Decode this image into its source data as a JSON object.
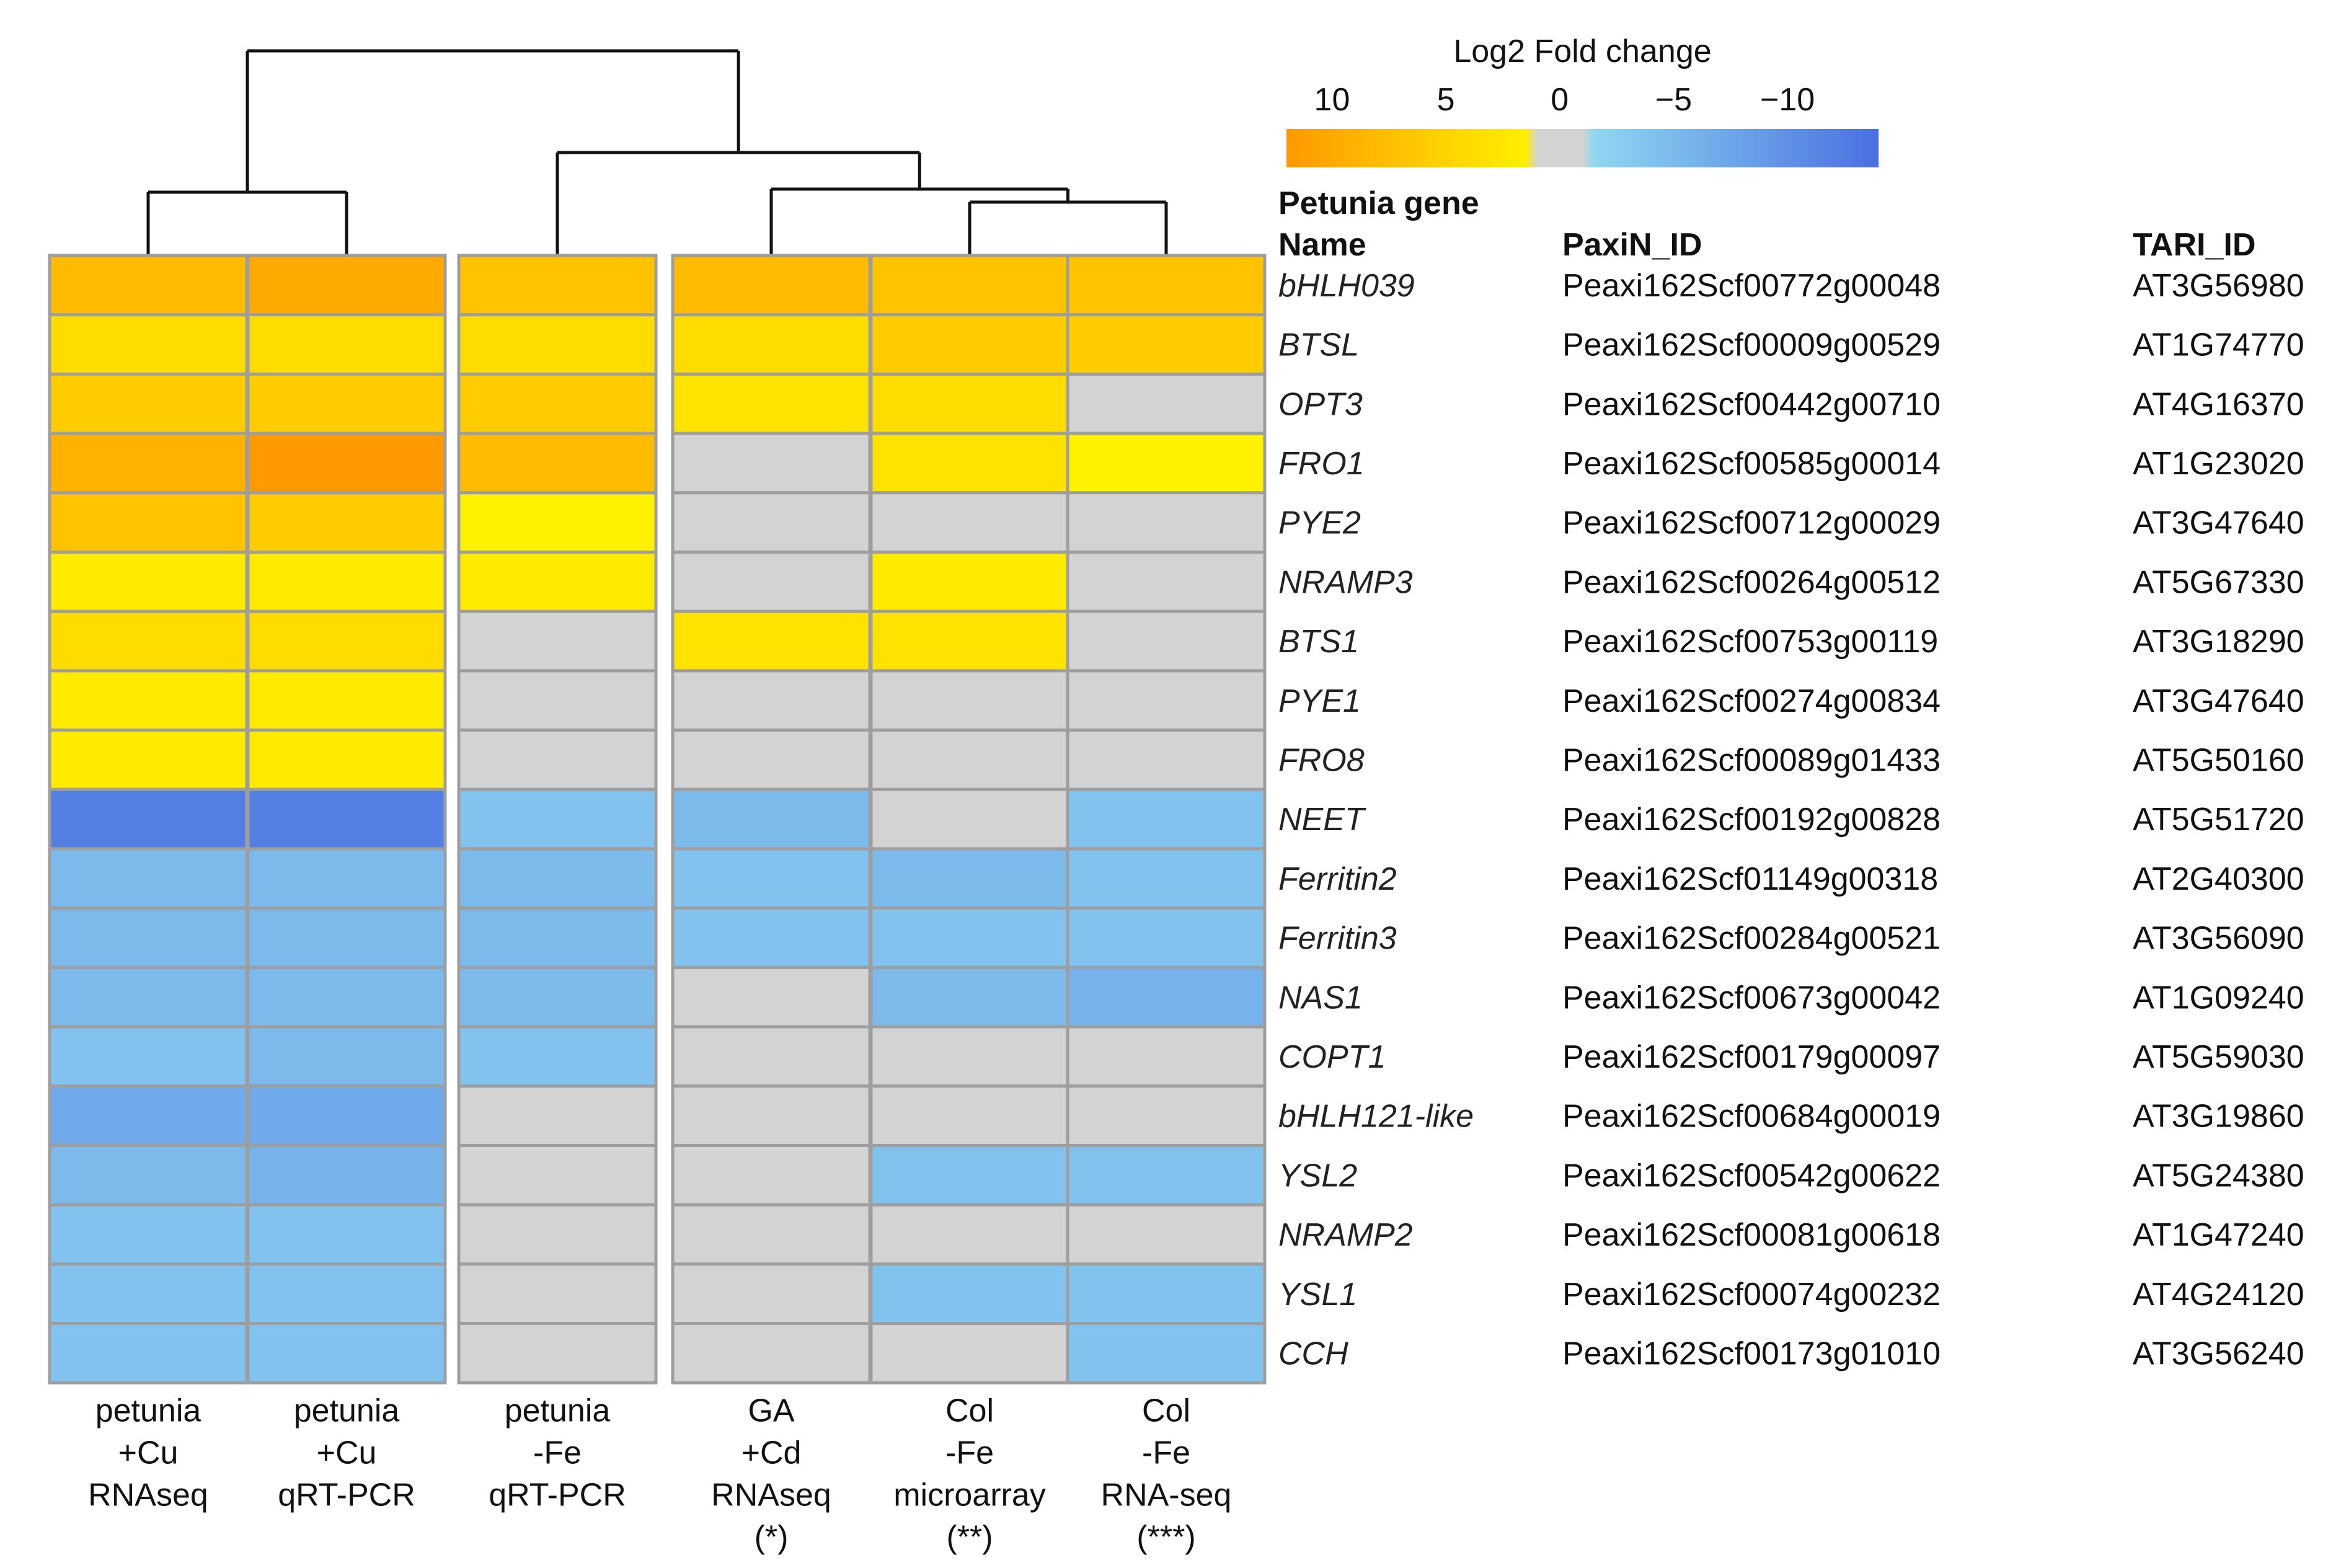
{
  "chart_data": {
    "type": "heatmap",
    "legend": {
      "title": "Log2 Fold change",
      "tick_labels": [
        "10",
        "5",
        "0",
        "−5",
        "−10"
      ],
      "tick_values": [
        10,
        5,
        0,
        -5,
        -10
      ],
      "range": [
        12,
        -14
      ]
    },
    "colors": {
      "high": "#FF9900",
      "mid_high": "#FFD400",
      "low_positive": "#FFF200",
      "zero": "#D3D3D3",
      "low_negative": "#87CBEF",
      "high_negative": "#4A6FE0",
      "cell_border": "#9E9E9E",
      "dendrogram": "#111111"
    },
    "columns": [
      {
        "lines": [
          "petunia",
          "+Cu",
          "RNAseq"
        ]
      },
      {
        "lines": [
          "petunia",
          "+Cu",
          "qRT-PCR"
        ]
      },
      {
        "lines": [
          "petunia",
          "-Fe",
          "qRT-PCR"
        ]
      },
      {
        "lines": [
          "GA",
          "+Cd",
          "RNAseq",
          "(*)"
        ]
      },
      {
        "lines": [
          "Col",
          "-Fe",
          "microarray",
          "(**)"
        ]
      },
      {
        "lines": [
          "Col",
          "-Fe",
          "RNA-seq",
          "(***)"
        ]
      }
    ],
    "column_groups": [
      [
        0,
        1
      ],
      [
        2
      ],
      [
        3,
        4,
        5
      ]
    ],
    "table_headers": {
      "name": [
        "Petunia gene",
        "Name"
      ],
      "paxin": "PaxiN_ID",
      "tari": "TARI_ID"
    },
    "rows": [
      {
        "name": "bHLH039",
        "paxin": "Peaxi162Scf00772g00048",
        "tari": "AT3G56980",
        "values": [
          8,
          10,
          7,
          8,
          7,
          7
        ]
      },
      {
        "name": "BTSL",
        "paxin": "Peaxi162Scf00009g00529",
        "tari": "AT1G74770",
        "values": [
          4,
          4,
          4,
          4,
          6,
          6
        ]
      },
      {
        "name": "OPT3",
        "paxin": "Peaxi162Scf00442g00710",
        "tari": "AT4G16370",
        "values": [
          6,
          6,
          6,
          3,
          4,
          0
        ]
      },
      {
        "name": "FRO1",
        "paxin": "Peaxi162Scf00585g00014",
        "tari": "AT1G23020",
        "values": [
          9,
          12,
          8,
          0,
          3,
          1
        ]
      },
      {
        "name": "PYE2",
        "paxin": "Peaxi162Scf00712g00029",
        "tari": "AT3G47640",
        "values": [
          7,
          6,
          1,
          0,
          0,
          0
        ]
      },
      {
        "name": "NRAMP3",
        "paxin": "Peaxi162Scf00264g00512",
        "tari": "AT5G67330",
        "values": [
          2,
          2,
          2,
          0,
          2,
          0
        ]
      },
      {
        "name": "BTS1",
        "paxin": "Peaxi162Scf00753g00119",
        "tari": "AT3G18290",
        "values": [
          4,
          4,
          0,
          3,
          3,
          0
        ]
      },
      {
        "name": "PYE1",
        "paxin": "Peaxi162Scf00274g00834",
        "tari": "AT3G47640",
        "values": [
          2,
          2,
          0,
          0,
          0,
          0
        ]
      },
      {
        "name": "FRO8",
        "paxin": "Peaxi162Scf00089g01433",
        "tari": "AT5G50160",
        "values": [
          2,
          2,
          0,
          0,
          0,
          0
        ]
      },
      {
        "name": "NEET",
        "paxin": "Peaxi162Scf00192g00828",
        "tari": "AT5G51720",
        "values": [
          -12,
          -12,
          -4,
          -5,
          0,
          -4
        ]
      },
      {
        "name": "Ferritin2",
        "paxin": "Peaxi162Scf01149g00318",
        "tari": "AT2G40300",
        "values": [
          -5,
          -5,
          -5,
          -4,
          -5,
          -4
        ]
      },
      {
        "name": "Ferritin3",
        "paxin": "Peaxi162Scf00284g00521",
        "tari": "AT3G56090",
        "values": [
          -5,
          -5,
          -5,
          -4,
          -4,
          -4
        ]
      },
      {
        "name": "NAS1",
        "paxin": "Peaxi162Scf00673g00042",
        "tari": "AT1G09240",
        "values": [
          -5,
          -5,
          -5,
          0,
          -5,
          -6
        ]
      },
      {
        "name": "COPT1",
        "paxin": "Peaxi162Scf00179g00097",
        "tari": "AT5G59030",
        "values": [
          -4,
          -5,
          -4,
          0,
          0,
          0
        ]
      },
      {
        "name": "bHLH121-like",
        "paxin": "Peaxi162Scf00684g00019",
        "tari": "AT3G19860",
        "values": [
          -7,
          -7,
          0,
          0,
          0,
          0
        ]
      },
      {
        "name": "YSL2",
        "paxin": "Peaxi162Scf00542g00622",
        "tari": "AT5G24380",
        "values": [
          -5,
          -6,
          0,
          0,
          -4,
          -4
        ]
      },
      {
        "name": "NRAMP2",
        "paxin": "Peaxi162Scf00081g00618",
        "tari": "AT1G47240",
        "values": [
          -4,
          -4,
          0,
          0,
          0,
          0
        ]
      },
      {
        "name": "YSL1",
        "paxin": "Peaxi162Scf00074g00232",
        "tari": "AT4G24120",
        "values": [
          -4,
          -4,
          0,
          0,
          -4,
          -4
        ]
      },
      {
        "name": "CCH",
        "paxin": "Peaxi162Scf00173g01010",
        "tari": "AT3G56240",
        "values": [
          -4,
          -4,
          0,
          0,
          0,
          -4
        ]
      }
    ]
  }
}
